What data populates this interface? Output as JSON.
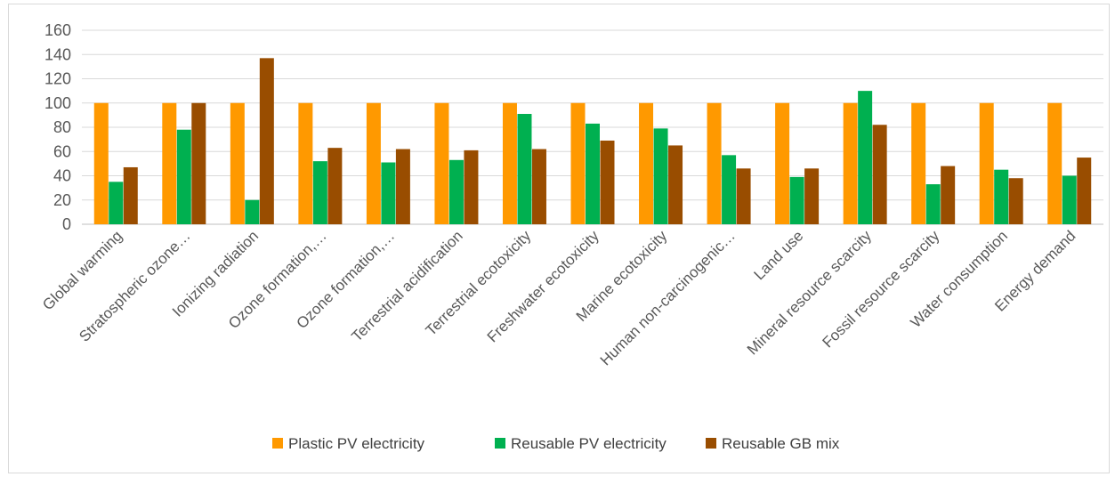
{
  "chart_data": {
    "type": "bar",
    "title": "",
    "xlabel": "",
    "ylabel": "",
    "ylim": [
      0,
      160
    ],
    "yticks": [
      0,
      20,
      40,
      60,
      80,
      100,
      120,
      140,
      160
    ],
    "grid": true,
    "legend_position": "bottom",
    "categories": [
      "Global warming",
      "Stratospheric ozone…",
      "Ionizing radiation",
      "Ozone formation,…",
      "Ozone formation,…",
      "Terrestrial acidification",
      "Terrestrial ecotoxicity",
      "Freshwater ecotoxicity",
      "Marine ecotoxicity",
      "Human non-carcinogenic…",
      "Land use",
      "Mineral resource scarcity",
      "Fossil resource scarcity",
      "Water consumption",
      "Energy demand"
    ],
    "series": [
      {
        "name": "Plastic PV electricity",
        "color": "#ff9900",
        "values": [
          100,
          100,
          100,
          100,
          100,
          100,
          100,
          100,
          100,
          100,
          100,
          100,
          100,
          100,
          100
        ]
      },
      {
        "name": "Reusable PV electricity",
        "color": "#00b050",
        "values": [
          35,
          78,
          20,
          52,
          51,
          53,
          91,
          83,
          79,
          57,
          39,
          110,
          33,
          45,
          40
        ]
      },
      {
        "name": "Reusable GB mix",
        "color": "#994d00",
        "values": [
          47,
          100,
          137,
          63,
          62,
          61,
          62,
          69,
          65,
          46,
          46,
          82,
          48,
          38,
          55
        ]
      }
    ]
  }
}
